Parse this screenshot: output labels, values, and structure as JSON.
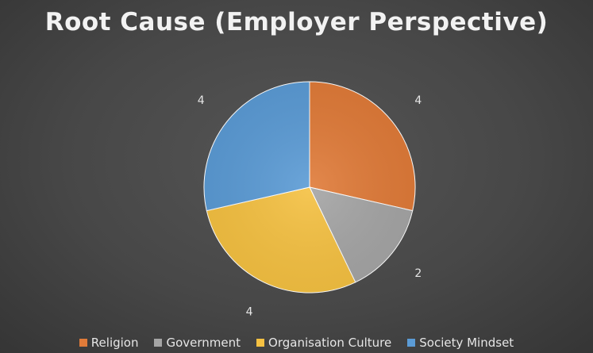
{
  "chart_data": {
    "type": "pie",
    "title": "Root Cause (Employer Perspective)",
    "categories": [
      "Religion",
      "Government",
      "Organisation Culture",
      "Society Mindset"
    ],
    "values": [
      4,
      2,
      4,
      4
    ],
    "data_labels": [
      "4",
      "2",
      "4",
      "4"
    ],
    "colors": [
      "#E07B39",
      "#A5A5A5",
      "#F5C142",
      "#5B9BD5"
    ],
    "legend_position": "bottom",
    "start_angle": "12 o'clock, clockwise"
  }
}
